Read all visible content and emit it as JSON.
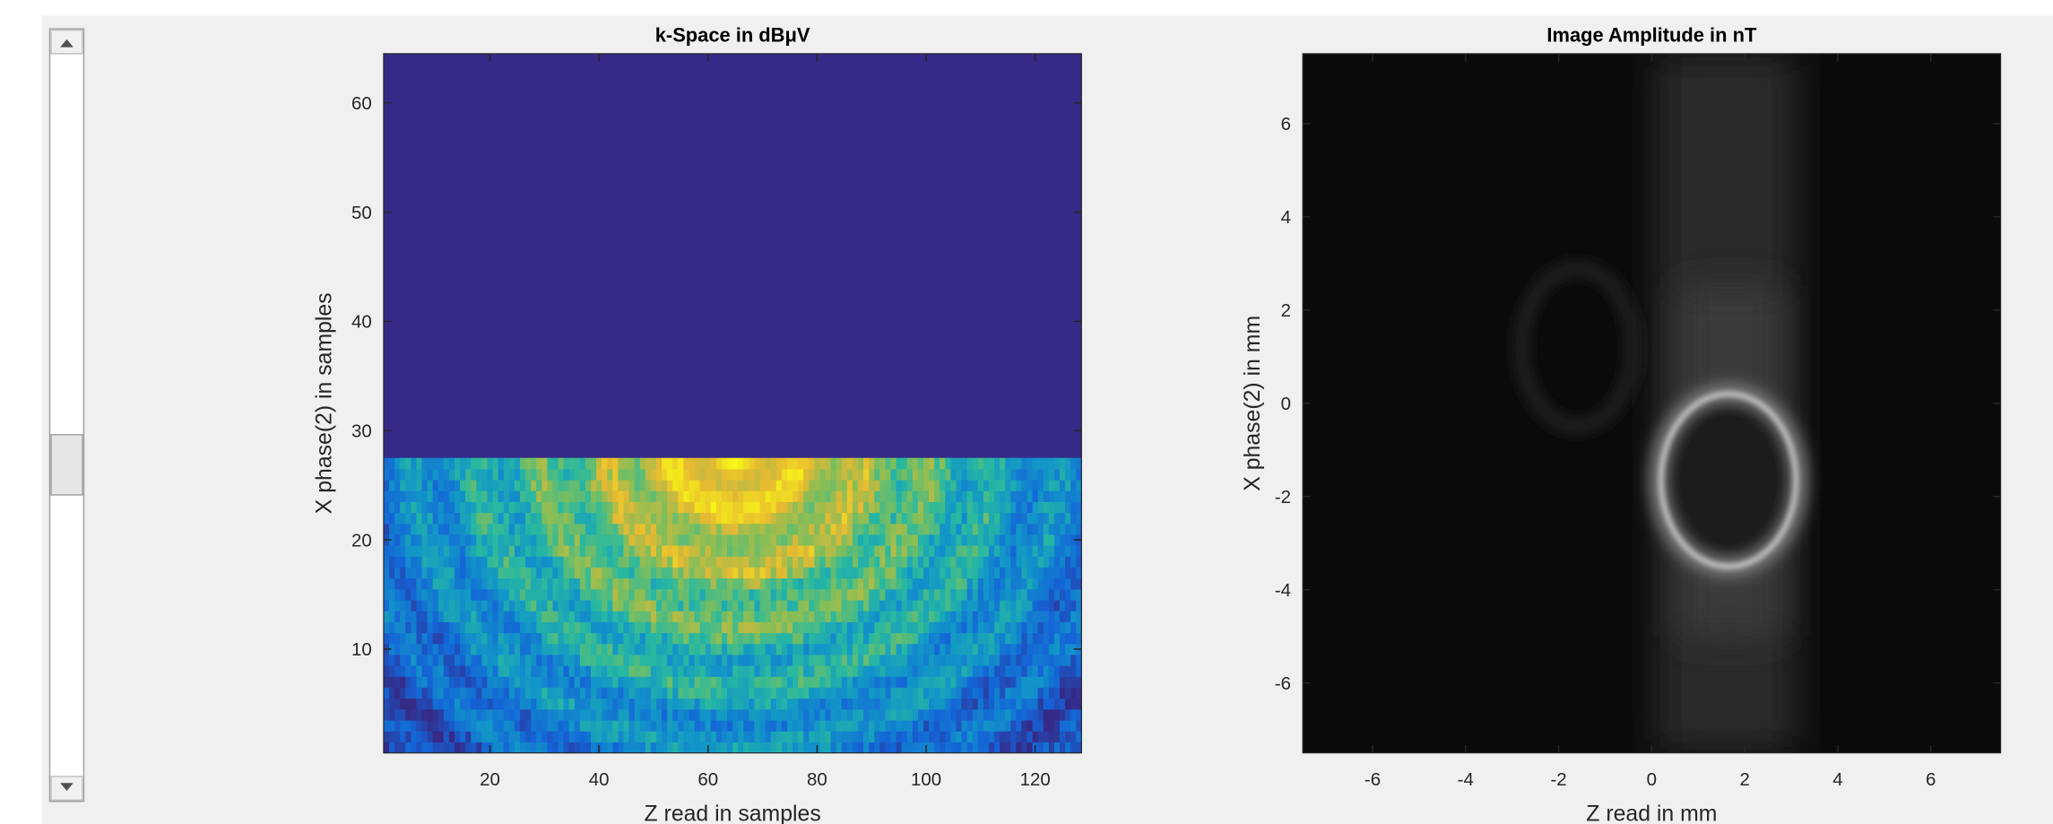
{
  "chart_data": [
    {
      "type": "heatmap",
      "title": "k-Space in dBμV",
      "x_label": "Z read in samples",
      "y_label": "X phase(2) in samples",
      "xlim": [
        0.5,
        128.5
      ],
      "ylim": [
        0.5,
        64.5
      ],
      "xticks": [
        20,
        40,
        60,
        80,
        100,
        120
      ],
      "yticks": [
        10,
        20,
        30,
        40,
        50,
        60
      ]
    },
    {
      "type": "heatmap",
      "title": "Image Amplitude in nT",
      "x_label": "Z read in mm",
      "y_label": "X phase(2) in mm",
      "xlim": [
        -7.5,
        7.5
      ],
      "ylim": [
        -7.5,
        7.5
      ],
      "xticks": [
        -6,
        -4,
        -2,
        0,
        2,
        4,
        6
      ],
      "yticks": [
        -6,
        -4,
        -2,
        0,
        2,
        4,
        6
      ]
    }
  ]
}
